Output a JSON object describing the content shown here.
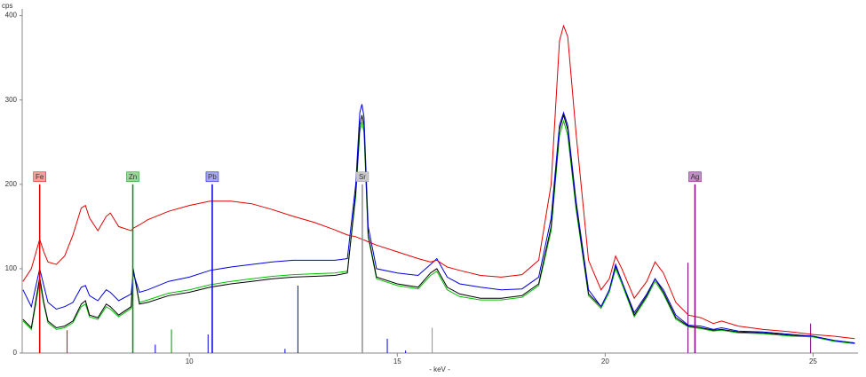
{
  "chart_data": {
    "type": "line",
    "y_label": "cps",
    "x_label": "- keV -",
    "xlim": [
      5.98,
      26.08
    ],
    "ylim": [
      0,
      408
    ],
    "xticks": [
      10,
      15,
      20,
      25
    ],
    "yticks": [
      0,
      100,
      200,
      300,
      400
    ],
    "x": [
      6.0,
      6.2,
      6.4,
      6.5,
      6.6,
      6.8,
      7.0,
      7.2,
      7.4,
      7.5,
      7.6,
      7.8,
      8.0,
      8.1,
      8.3,
      8.6,
      8.65,
      8.8,
      9.0,
      9.5,
      10.0,
      10.5,
      11.0,
      11.5,
      12.0,
      12.5,
      13.0,
      13.5,
      13.8,
      14.0,
      14.1,
      14.15,
      14.2,
      14.3,
      14.5,
      15.0,
      15.5,
      15.8,
      15.95,
      16.2,
      16.5,
      17.0,
      17.5,
      18.0,
      18.4,
      18.7,
      18.9,
      19.0,
      19.1,
      19.3,
      19.6,
      19.9,
      20.1,
      20.25,
      20.4,
      20.7,
      21.0,
      21.2,
      21.4,
      21.7,
      22.0,
      22.3,
      22.6,
      22.8,
      23.2,
      23.8,
      24.5,
      25.0,
      25.5,
      26.0
    ],
    "series": [
      {
        "color": "#e00000",
        "values": [
          85,
          100,
          135,
          120,
          108,
          105,
          115,
          140,
          172,
          175,
          160,
          145,
          162,
          166,
          150,
          145,
          148,
          152,
          158,
          168,
          175,
          180,
          180,
          177,
          170,
          162,
          155,
          146,
          140,
          138,
          136,
          135,
          134,
          132,
          128,
          120,
          112,
          108,
          110,
          102,
          98,
          92,
          90,
          93,
          110,
          200,
          370,
          388,
          375,
          260,
          110,
          75,
          88,
          115,
          100,
          65,
          85,
          108,
          95,
          60,
          45,
          42,
          35,
          38,
          32,
          28,
          25,
          22,
          20,
          17
        ]
      },
      {
        "color": "#0000e0",
        "values": [
          75,
          55,
          100,
          80,
          60,
          52,
          55,
          60,
          78,
          80,
          68,
          62,
          75,
          72,
          62,
          70,
          95,
          72,
          75,
          85,
          90,
          98,
          102,
          105,
          108,
          110,
          110,
          110,
          112,
          200,
          285,
          295,
          280,
          150,
          100,
          95,
          92,
          105,
          112,
          90,
          82,
          78,
          75,
          76,
          90,
          160,
          270,
          285,
          270,
          180,
          75,
          55,
          75,
          105,
          85,
          48,
          70,
          88,
          75,
          45,
          33,
          32,
          28,
          30,
          26,
          25,
          22,
          20,
          15,
          12
        ]
      },
      {
        "color": "#000000",
        "values": [
          40,
          30,
          90,
          60,
          38,
          30,
          32,
          38,
          58,
          62,
          45,
          42,
          58,
          55,
          45,
          55,
          100,
          58,
          60,
          68,
          72,
          78,
          82,
          85,
          88,
          90,
          91,
          92,
          95,
          190,
          270,
          282,
          270,
          140,
          90,
          82,
          78,
          95,
          100,
          78,
          70,
          65,
          65,
          68,
          82,
          150,
          265,
          282,
          265,
          175,
          70,
          55,
          75,
          103,
          85,
          45,
          68,
          88,
          72,
          42,
          32,
          30,
          27,
          28,
          25,
          24,
          21,
          20,
          15,
          12
        ]
      },
      {
        "color": "#00c000",
        "values": [
          38,
          28,
          85,
          58,
          36,
          28,
          30,
          36,
          55,
          58,
          43,
          40,
          55,
          52,
          43,
          53,
          98,
          60,
          63,
          71,
          75,
          81,
          85,
          88,
          91,
          93,
          94,
          95,
          97,
          185,
          262,
          274,
          262,
          138,
          88,
          80,
          76,
          92,
          97,
          75,
          67,
          63,
          63,
          66,
          80,
          145,
          258,
          275,
          258,
          170,
          68,
          53,
          72,
          100,
          82,
          43,
          66,
          85,
          70,
          40,
          31,
          29,
          26,
          27,
          24,
          23,
          20,
          19,
          14,
          11
        ]
      }
    ],
    "markers": [
      {
        "label": "Fe",
        "x": 6.4,
        "y": 200,
        "color": "#e00000",
        "fill": "#f0a0a0",
        "lines": {
          "x": [
            6.4,
            7.06
          ],
          "y": [
            100,
            27
          ]
        }
      },
      {
        "label": "Zn",
        "x": 8.64,
        "y": 200,
        "color": "#009000",
        "fill": "#a0d0a0",
        "lines": {
          "x": [
            8.64,
            9.57
          ],
          "y": [
            100,
            28
          ]
        }
      },
      {
        "label": "Pb",
        "x": 10.55,
        "y": 200,
        "color": "#0000e0",
        "fill": "#a8a8f0",
        "lines": {
          "x": [
            9.18,
            10.45,
            12.3,
            12.61,
            14.76,
            15.2
          ],
          "y": [
            10,
            22,
            5,
            80,
            17,
            3
          ]
        }
      },
      {
        "label": "Sr",
        "x": 14.16,
        "y": 200,
        "color": "#909090",
        "fill": "#c8c8c8",
        "lines": {
          "x": [
            15.84
          ],
          "y": [
            30
          ]
        }
      },
      {
        "label": "Ag",
        "x": 22.16,
        "y": 200,
        "color": "#800080",
        "fill": "#c090c0",
        "lines": {
          "x": [
            21.99,
            24.94
          ],
          "y": [
            107,
            35
          ]
        }
      }
    ]
  }
}
